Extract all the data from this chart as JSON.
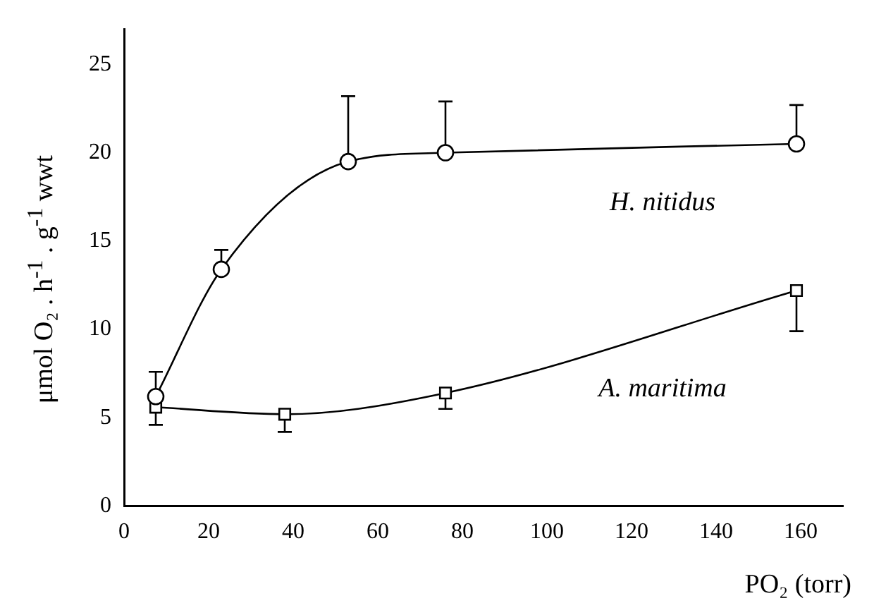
{
  "chart_data": {
    "type": "line",
    "xlabel": "PO₂ (torr)",
    "ylabel": "μmol O₂ . h$^{-1}$ . g$^{-1}$ wwt",
    "xlim": [
      0,
      170
    ],
    "xticks": [
      0,
      20,
      40,
      60,
      80,
      100,
      120,
      140,
      160
    ],
    "ylim": [
      0,
      27
    ],
    "yticks": [
      0,
      5,
      10,
      15,
      20,
      25
    ],
    "grid": false,
    "legend": false,
    "series": [
      {
        "name": "H. nitidus",
        "color": "#000000",
        "marker": "circle",
        "x": [
          7.5,
          23,
          53,
          76,
          159
        ],
        "values": [
          6.2,
          13.4,
          19.5,
          20,
          20.5
        ],
        "errors": [
          [
            6.2,
            7.6
          ],
          [
            13.4,
            14.5
          ],
          [
            19.5,
            23.2
          ],
          [
            20,
            22.9
          ],
          [
            20.5,
            22.7
          ]
        ]
      },
      {
        "name": "A. maritima",
        "color": "#000000",
        "marker": "square",
        "x": [
          7.5,
          38,
          76,
          159
        ],
        "values": [
          5.6,
          5.2,
          6.4,
          12.2
        ],
        "errors": [
          [
            4.6,
            5.6
          ],
          [
            4.2,
            5.2
          ],
          [
            5.5,
            6.4
          ],
          [
            9.9,
            12.2
          ]
        ]
      }
    ]
  }
}
